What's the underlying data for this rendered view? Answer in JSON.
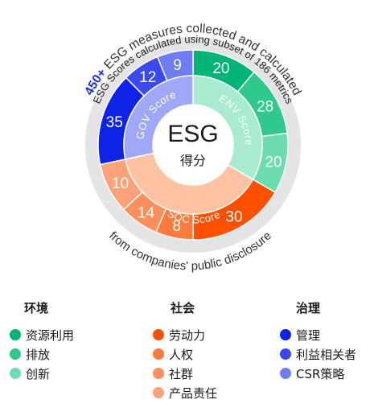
{
  "center": {
    "title": "ESG",
    "subtitle": "得分"
  },
  "outer_text": {
    "top_prefix": "450+",
    "top_rest": " ESG measures collected and calculated",
    "second": "ESG Scores calculated using subset of 186 metrics",
    "bottom": "from companies' public disclosure"
  },
  "pillars": {
    "env": {
      "label": "ENV Score"
    },
    "soc": {
      "label": "SOC Score"
    },
    "gov": {
      "label": "GOV Score"
    }
  },
  "segments": [
    {
      "key": "env1",
      "value": "20",
      "color": "#00b377"
    },
    {
      "key": "env2",
      "value": "28",
      "color": "#2ec98b"
    },
    {
      "key": "env3",
      "value": "20",
      "color": "#6ddcae"
    },
    {
      "key": "soc1",
      "value": "30",
      "color": "#ff5000"
    },
    {
      "key": "soc2",
      "value": "8",
      "color": "#ff7a3d"
    },
    {
      "key": "soc3",
      "value": "14",
      "color": "#ff8f5a"
    },
    {
      "key": "soc4",
      "value": "10",
      "color": "#ffa27a"
    },
    {
      "key": "gov1",
      "value": "35",
      "color": "#0f22e8"
    },
    {
      "key": "gov2",
      "value": "12",
      "color": "#3a4af0"
    },
    {
      "key": "gov3",
      "value": "9",
      "color": "#6f7df5"
    }
  ],
  "legend": {
    "env": {
      "title": "环境",
      "items": [
        {
          "label": "资源利用",
          "color": "#00b377"
        },
        {
          "label": "排放",
          "color": "#2ec98b"
        },
        {
          "label": "创新",
          "color": "#6ddcae"
        }
      ]
    },
    "soc": {
      "title": "社会",
      "items": [
        {
          "label": "劳动力",
          "color": "#ff5000"
        },
        {
          "label": "人权",
          "color": "#ff7a3d"
        },
        {
          "label": "社群",
          "color": "#ff8f5a"
        },
        {
          "label": "产品责任",
          "color": "#ffa27a"
        }
      ]
    },
    "gov": {
      "title": "治理",
      "items": [
        {
          "label": "管理",
          "color": "#0f22e8"
        },
        {
          "label": "利益相关者",
          "color": "#3a4af0"
        },
        {
          "label": "CSR策略",
          "color": "#6f7df5"
        }
      ]
    }
  }
}
